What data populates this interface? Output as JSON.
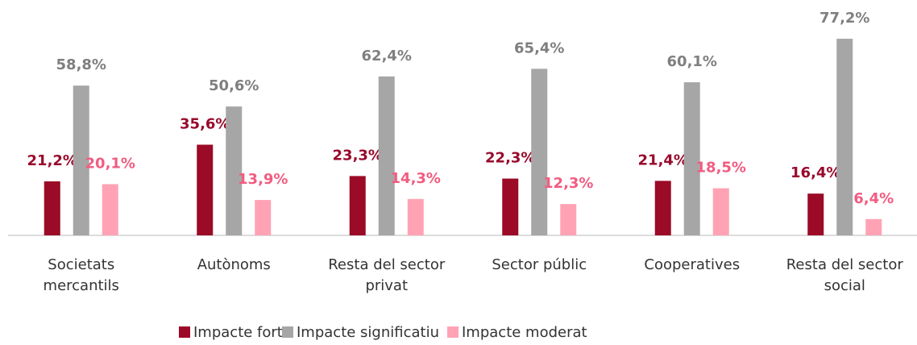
{
  "chart_data": {
    "type": "bar",
    "categories": [
      "Societats mercantils",
      "Autònoms",
      "Resta del sector privat",
      "Sector públic",
      "Cooperatives",
      "Resta del sector social"
    ],
    "series": [
      {
        "name": "Impacte fort",
        "color": "#9b0a26",
        "label_color": "#990a2c",
        "values": [
          21.2,
          35.6,
          23.3,
          22.3,
          21.4,
          16.4
        ],
        "value_labels": [
          "21,2%",
          "35,6%",
          "23,3%",
          "22,3%",
          "21,4%",
          "16,4%"
        ]
      },
      {
        "name": "Impacte significatiu",
        "color": "#a6a6a6",
        "label_color": "#7f7f7f",
        "values": [
          58.8,
          50.6,
          62.4,
          65.4,
          60.1,
          77.2
        ],
        "value_labels": [
          "58,8%",
          "50,6%",
          "62,4%",
          "65,4%",
          "60,1%",
          "77,2%"
        ]
      },
      {
        "name": "Impacte moderat",
        "color": "#ffa3b4",
        "label_color": "#f25c80",
        "values": [
          20.1,
          13.9,
          14.3,
          12.3,
          18.5,
          6.4
        ],
        "value_labels": [
          "20,1%",
          "13,9%",
          "14,3%",
          "12,3%",
          "18,5%",
          "6,4%"
        ]
      }
    ]
  }
}
